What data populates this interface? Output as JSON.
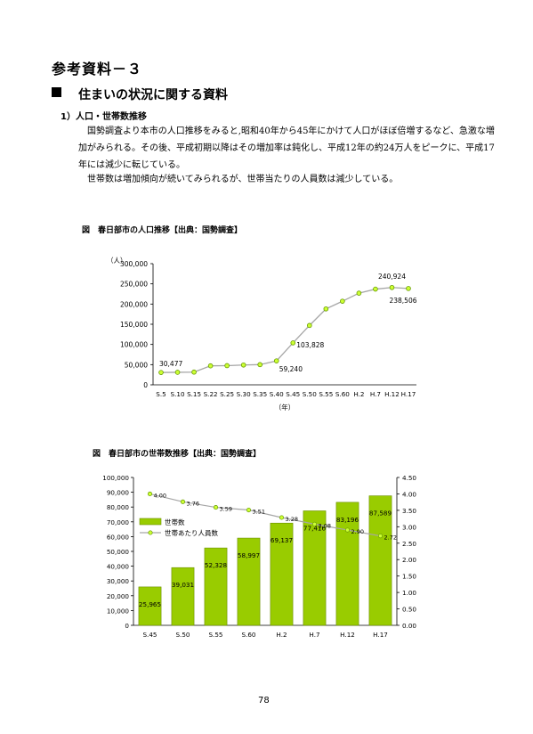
{
  "doc_title": "参考資料－３",
  "section": {
    "marker": "■",
    "title": "住まいの状況に関する資料"
  },
  "subsection": "1）人口・世帯数推移",
  "paragraphs": [
    "国勢調査より本市の人口推移をみると,昭和40年から45年にかけて人口がほぼ倍増するなど、急激な増加がみられる。その後、平成初期以降はその増加率は鈍化し、平成12年の約24万人をピークに、平成17年には減少に転じている。",
    "世帯数は増加傾向が続いてみられるが、世帯当たりの人員数は減少している。"
  ],
  "chart1_caption": "図　春日部市の人口推移【出典：国勢調査】",
  "chart2_caption": "図　春日部市の世帯数推移【出典：国勢調査】",
  "page_number": "78",
  "colors": {
    "bar": "#99cc00",
    "line": "#a6a6a6",
    "marker": "#ccff33",
    "marker_stroke": "#669900"
  },
  "chart_data": [
    {
      "type": "line",
      "title": "",
      "xlabel": "（年）",
      "ylabel": "（人）",
      "ylim": [
        0,
        300000
      ],
      "yticks": [
        "0",
        "50,000",
        "100,000",
        "150,000",
        "200,000",
        "250,000",
        "300,000"
      ],
      "categories": [
        "S.5",
        "S.10",
        "S.15",
        "S.22",
        "S.25",
        "S.30",
        "S.35",
        "S.40",
        "S.45",
        "S.50",
        "S.55",
        "S.60",
        "H.2",
        "H.7",
        "H.12",
        "H.17"
      ],
      "values": [
        30477,
        31000,
        31500,
        47000,
        47500,
        49000,
        50000,
        59240,
        103828,
        147000,
        188000,
        207000,
        227000,
        237000,
        240924,
        238506
      ],
      "data_labels": [
        {
          "index": 0,
          "text": "30,477"
        },
        {
          "index": 7,
          "text": "59,240"
        },
        {
          "index": 8,
          "text": "103,828"
        },
        {
          "index": 14,
          "text": "240,924"
        },
        {
          "index": 15,
          "text": "238,506"
        }
      ]
    },
    {
      "type": "bar",
      "title": "",
      "categories": [
        "S.45",
        "S.50",
        "S.55",
        "S.60",
        "H.2",
        "H.7",
        "H.12",
        "H.17"
      ],
      "ylim": [
        0,
        100000
      ],
      "y2lim": [
        0,
        4.5
      ],
      "yticks": [
        "0",
        "10,000",
        "20,000",
        "30,000",
        "40,000",
        "50,000",
        "60,000",
        "70,000",
        "80,000",
        "90,000",
        "100,000"
      ],
      "y2ticks": [
        "0.00",
        "0.50",
        "1.00",
        "1.50",
        "2.00",
        "2.50",
        "3.00",
        "3.50",
        "4.00",
        "4.50"
      ],
      "legend_position": "left-middle",
      "series": [
        {
          "name": "世帯数",
          "kind": "bar",
          "values": [
            25965,
            39031,
            52328,
            58997,
            69137,
            77416,
            83196,
            87589
          ],
          "labels": [
            "25,965",
            "39,031",
            "52,328",
            "58,997",
            "69,137",
            "77,416",
            "83,196",
            "87,589"
          ]
        },
        {
          "name": "世帯あたり人員数",
          "kind": "line",
          "axis": "right",
          "values": [
            4.0,
            3.76,
            3.59,
            3.51,
            3.28,
            3.08,
            2.9,
            2.72
          ],
          "labels": [
            "4.00",
            "3.76",
            "3.59",
            "3.51",
            "3.28",
            "3.08",
            "2.90",
            "2.72"
          ]
        }
      ]
    }
  ]
}
